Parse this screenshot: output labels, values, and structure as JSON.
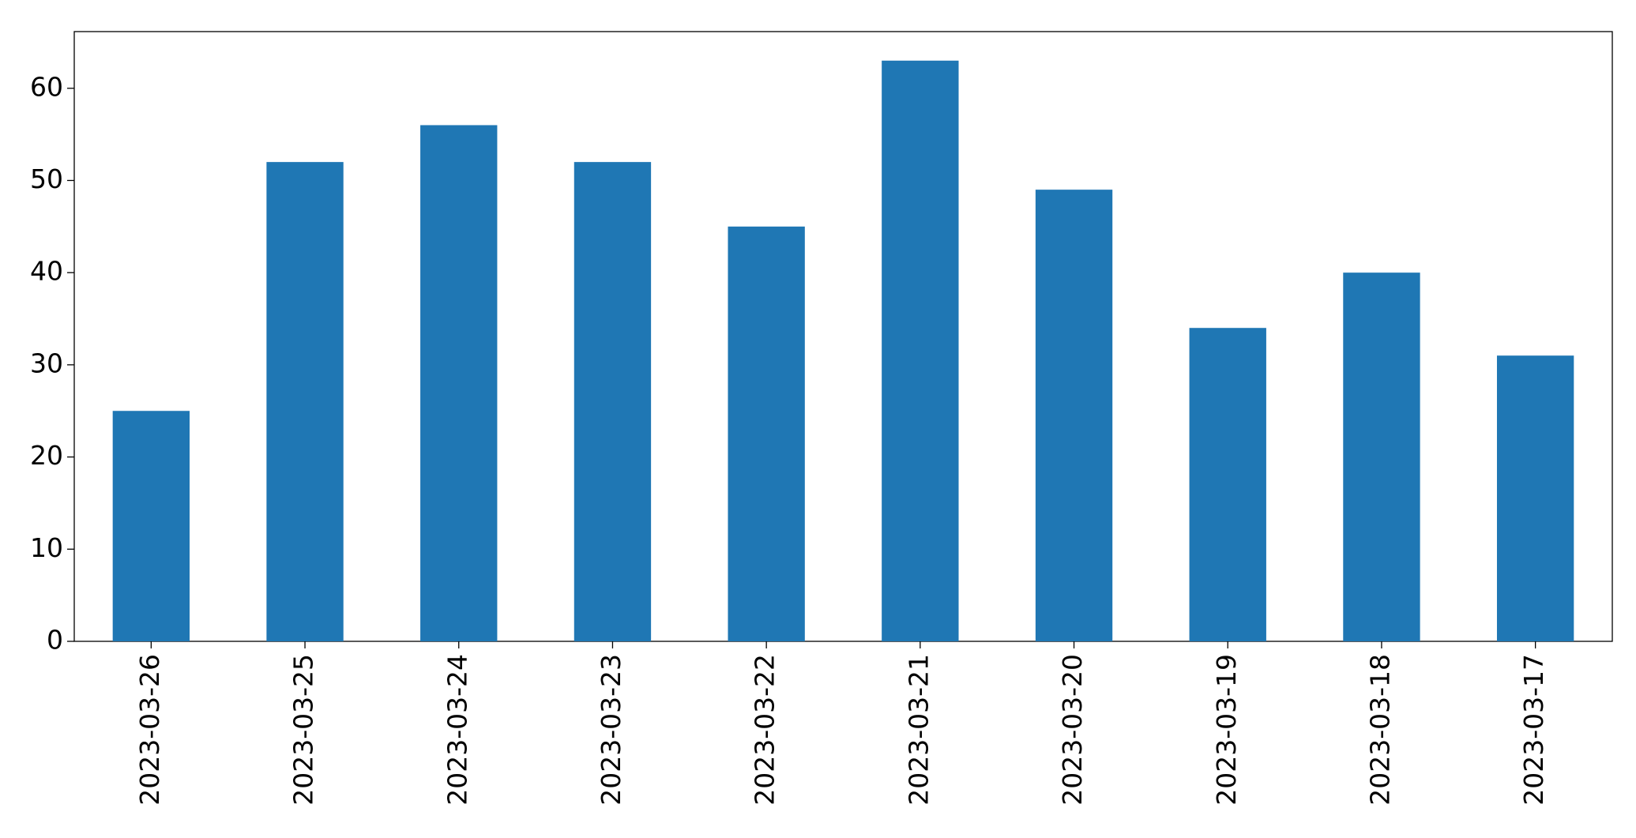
{
  "chart_data": {
    "type": "bar",
    "categories": [
      "2023-03-26",
      "2023-03-25",
      "2023-03-24",
      "2023-03-23",
      "2023-03-22",
      "2023-03-21",
      "2023-03-20",
      "2023-03-19",
      "2023-03-18",
      "2023-03-17"
    ],
    "values": [
      25,
      52,
      56,
      52,
      45,
      63,
      49,
      34,
      40,
      31
    ],
    "color": "#1f77b4",
    "ylim": [
      0,
      66.15
    ],
    "yticks": [
      0,
      10,
      20,
      30,
      40,
      50,
      60
    ],
    "grid": false
  }
}
